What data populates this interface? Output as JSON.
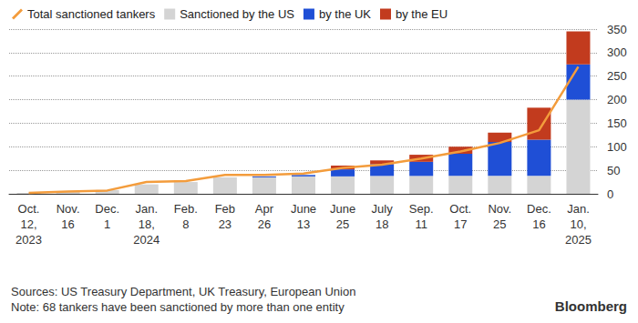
{
  "chart_data": {
    "type": "bar",
    "stacked": true,
    "grid": true,
    "legend": "top-left",
    "categories": [
      "Oct. 12, 2023",
      "Nov. 16",
      "Dec. 1",
      "Jan. 18, 2024",
      "Feb. 8",
      "Feb 23",
      "Apr 26",
      "June 13",
      "June 25",
      "July 18",
      "Sep. 11",
      "Oct. 17",
      "Nov. 25",
      "Dec. 16",
      "Jan. 10, 2025"
    ],
    "series": [
      {
        "name": "Total sanctioned tankers",
        "type": "line",
        "color": "#f39c3c",
        "values": [
          2,
          5,
          7,
          25,
          27,
          40,
          40,
          43,
          55,
          62,
          75,
          90,
          108,
          135,
          270
        ]
      },
      {
        "name": "Sanctioned by the US",
        "type": "bar",
        "color": "#d4d4d4",
        "values": [
          2,
          5,
          8,
          20,
          25,
          35,
          35,
          37,
          37,
          38,
          38,
          38,
          38,
          38,
          200
        ]
      },
      {
        "name": "by the UK",
        "type": "bar",
        "color": "#1f4fd6",
        "values": [
          0,
          0,
          0,
          0,
          0,
          0,
          2,
          3,
          15,
          25,
          30,
          47,
          72,
          77,
          75
        ]
      },
      {
        "name": "by the EU",
        "type": "bar",
        "color": "#c23b1e",
        "values": [
          0,
          0,
          0,
          0,
          0,
          0,
          0,
          0,
          8,
          8,
          15,
          15,
          20,
          68,
          70
        ]
      }
    ],
    "ylim": [
      0,
      350
    ],
    "yticks": [
      0,
      50,
      100,
      150,
      200,
      250,
      300,
      350
    ],
    "source": "Sources: US Treasury Department, UK Treasury, European Union",
    "note": "Note: 68 tankers have been sanctioned by more than one entity",
    "credit": "Bloomberg"
  }
}
